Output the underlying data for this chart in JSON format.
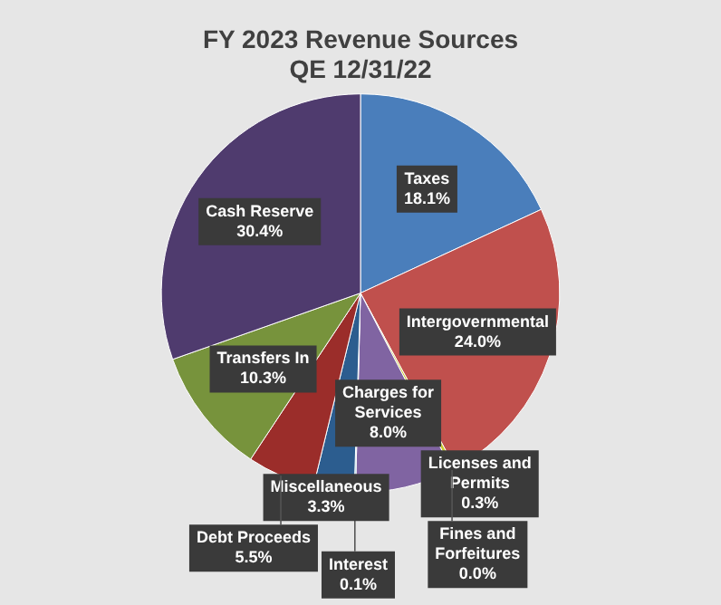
{
  "chart_data": {
    "type": "pie",
    "title": "FY 2023 Revenue Sources",
    "subtitle": "QE 12/31/22",
    "categories": [
      "Taxes",
      "Intergovernmental",
      "Licenses and Permits",
      "Fines and Forfeitures",
      "Charges for Services",
      "Interest",
      "Miscellaneous",
      "Debt Proceeds",
      "Transfers In",
      "Cash Reserve"
    ],
    "values": [
      18.1,
      24.0,
      0.3,
      0.0,
      8.0,
      0.1,
      3.3,
      5.5,
      10.3,
      30.4
    ],
    "value_labels": [
      "18.1%",
      "24.0%",
      "0.3%",
      "0.0%",
      "8.0%",
      "0.1%",
      "3.3%",
      "5.5%",
      "10.3%",
      "30.4%"
    ],
    "colors": [
      "#4a7ebb",
      "#c0504d",
      "#c8c830",
      "#e08a30",
      "#8064a2",
      "#4bacc6",
      "#2c5d8f",
      "#9b2d2a",
      "#77933c",
      "#4f3b6e"
    ],
    "legend": false
  }
}
